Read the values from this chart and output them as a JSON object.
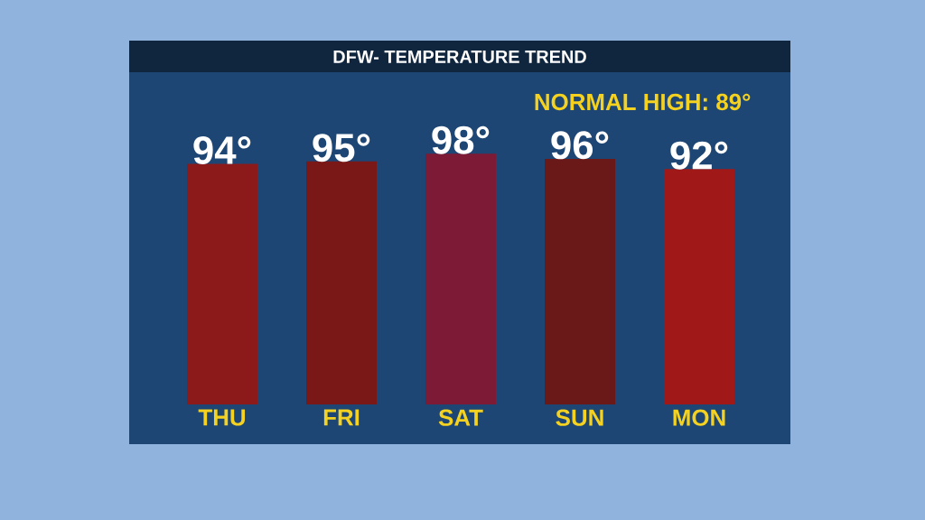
{
  "chart_data": {
    "type": "bar",
    "title": "DFW- TEMPERATURE TREND",
    "annotations": [
      "NORMAL HIGH: 89°"
    ],
    "categories": [
      "THU",
      "FRI",
      "SAT",
      "SUN",
      "MON"
    ],
    "values": [
      94,
      95,
      98,
      96,
      92
    ],
    "value_labels": [
      "94°",
      "95°",
      "98°",
      "96°",
      "92°"
    ],
    "colors": [
      "#8c1a1a",
      "#7a1818",
      "#7d1a35",
      "#6b1818",
      "#a01818"
    ]
  }
}
